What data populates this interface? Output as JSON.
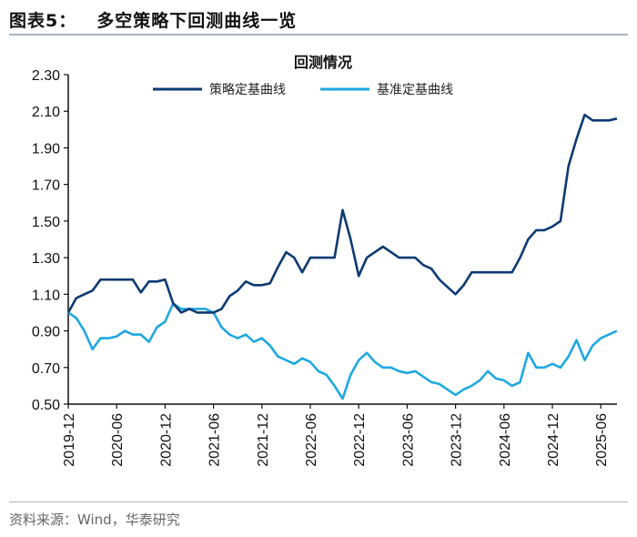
{
  "figure": {
    "label": "图表5：",
    "title": "多空策略下回测曲线一览",
    "source": "资料来源：Wind，华泰研究"
  },
  "chart_data": {
    "type": "line",
    "title": "回测情况",
    "xlabel": "",
    "ylabel": "",
    "ylim": [
      0.5,
      2.3
    ],
    "yticks": [
      "0.50",
      "0.70",
      "0.90",
      "1.10",
      "1.30",
      "1.50",
      "1.70",
      "1.90",
      "2.10",
      "2.30"
    ],
    "xticks": [
      "2019-12",
      "2020-06",
      "2020-12",
      "2021-06",
      "2021-12",
      "2022-06",
      "2022-12",
      "2023-06",
      "2023-12",
      "2024-06",
      "2024-12",
      "2025-06"
    ],
    "grid": false,
    "legend_position": "top-center",
    "x": [
      "2019-12",
      "2020-01",
      "2020-02",
      "2020-03",
      "2020-04",
      "2020-05",
      "2020-06",
      "2020-07",
      "2020-08",
      "2020-09",
      "2020-10",
      "2020-11",
      "2020-12",
      "2021-01",
      "2021-02",
      "2021-03",
      "2021-04",
      "2021-05",
      "2021-06",
      "2021-07",
      "2021-08",
      "2021-09",
      "2021-10",
      "2021-11",
      "2021-12",
      "2022-01",
      "2022-02",
      "2022-03",
      "2022-04",
      "2022-05",
      "2022-06",
      "2022-07",
      "2022-08",
      "2022-09",
      "2022-10",
      "2022-11",
      "2022-12",
      "2023-01",
      "2023-02",
      "2023-03",
      "2023-04",
      "2023-05",
      "2023-06",
      "2023-07",
      "2023-08",
      "2023-09",
      "2023-10",
      "2023-11",
      "2023-12",
      "2024-01",
      "2024-02",
      "2024-03",
      "2024-04",
      "2024-05",
      "2024-06",
      "2024-07",
      "2024-08",
      "2024-09",
      "2024-10",
      "2024-11",
      "2024-12",
      "2025-01",
      "2025-02",
      "2025-03",
      "2025-04",
      "2025-05",
      "2025-06",
      "2025-07",
      "2025-08"
    ],
    "series": [
      {
        "name": "策略定基曲线",
        "color": "#0d3a72",
        "values": [
          1.0,
          1.08,
          1.1,
          1.12,
          1.18,
          1.18,
          1.18,
          1.18,
          1.18,
          1.11,
          1.17,
          1.17,
          1.18,
          1.05,
          1.0,
          1.02,
          1.0,
          1.0,
          1.0,
          1.02,
          1.09,
          1.12,
          1.17,
          1.15,
          1.15,
          1.16,
          1.25,
          1.33,
          1.3,
          1.22,
          1.3,
          1.3,
          1.3,
          1.3,
          1.56,
          1.4,
          1.2,
          1.3,
          1.33,
          1.36,
          1.33,
          1.3,
          1.3,
          1.3,
          1.26,
          1.24,
          1.18,
          1.14,
          1.1,
          1.15,
          1.22,
          1.22,
          1.22,
          1.22,
          1.22,
          1.22,
          1.3,
          1.4,
          1.45,
          1.45,
          1.47,
          1.5,
          1.8,
          1.95,
          2.08,
          2.05,
          2.05,
          2.05,
          2.06
        ]
      },
      {
        "name": "基准定基曲线",
        "color": "#1fa8e0",
        "values": [
          1.0,
          0.97,
          0.9,
          0.8,
          0.86,
          0.86,
          0.87,
          0.9,
          0.88,
          0.88,
          0.84,
          0.92,
          0.95,
          1.05,
          1.02,
          1.02,
          1.02,
          1.02,
          1.0,
          0.92,
          0.88,
          0.86,
          0.88,
          0.84,
          0.86,
          0.82,
          0.76,
          0.74,
          0.72,
          0.75,
          0.73,
          0.68,
          0.66,
          0.6,
          0.53,
          0.66,
          0.74,
          0.78,
          0.73,
          0.7,
          0.7,
          0.68,
          0.67,
          0.68,
          0.65,
          0.62,
          0.61,
          0.58,
          0.55,
          0.58,
          0.6,
          0.63,
          0.68,
          0.64,
          0.63,
          0.6,
          0.62,
          0.78,
          0.7,
          0.7,
          0.72,
          0.7,
          0.76,
          0.85,
          0.74,
          0.82,
          0.86,
          0.88,
          0.9
        ]
      }
    ]
  }
}
